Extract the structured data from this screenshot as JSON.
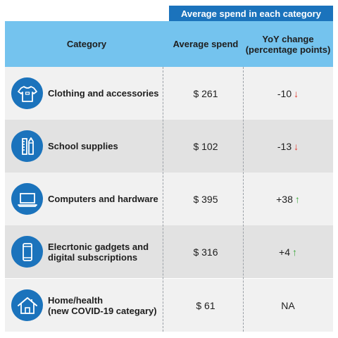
{
  "chart_data": {
    "type": "table",
    "banner": "Average spend in each category",
    "columns": [
      "Category",
      "Average spend",
      "YoY change\n(percentage points)"
    ],
    "column_lines": [
      [
        "Category"
      ],
      [
        "Average spend"
      ],
      [
        "YoY change",
        "(percentage points)"
      ]
    ],
    "rows": [
      {
        "category_lines": [
          "Clothing and accessories"
        ],
        "spend": "$ 261",
        "spend_value": 261,
        "yoy": "-10",
        "yoy_value": -10,
        "direction": "down",
        "icon": "tshirt-icon"
      },
      {
        "category_lines": [
          "School supplies"
        ],
        "spend": "$ 102",
        "spend_value": 102,
        "yoy": "-13",
        "yoy_value": -13,
        "direction": "down",
        "icon": "pencil-ruler-icon"
      },
      {
        "category_lines": [
          "Computers and hardware"
        ],
        "spend": "$ 395",
        "spend_value": 395,
        "yoy": "+38",
        "yoy_value": 38,
        "direction": "up",
        "icon": "laptop-icon"
      },
      {
        "category_lines": [
          "Elecrtonic gadgets and",
          "digital subscriptions"
        ],
        "spend": "$ 316",
        "spend_value": 316,
        "yoy": "+4",
        "yoy_value": 4,
        "direction": "up",
        "icon": "smartphone-icon"
      },
      {
        "category_lines": [
          "Home/health",
          "(new COVID-19 categary)"
        ],
        "spend": "$ 61",
        "spend_value": 61,
        "yoy": "NA",
        "yoy_value": null,
        "direction": "",
        "icon": "house-icon"
      }
    ]
  },
  "colors": {
    "header_bg": "#74c3ee",
    "banner_bg": "#1b73bc",
    "icon_bg": "#1b73bc",
    "row_light": "#f1f1f1",
    "row_dark": "#e2e2e2",
    "down_arrow": "#e03a2f",
    "up_arrow": "#3aa63a"
  },
  "arrows": {
    "down": "↓",
    "up": "↑"
  }
}
